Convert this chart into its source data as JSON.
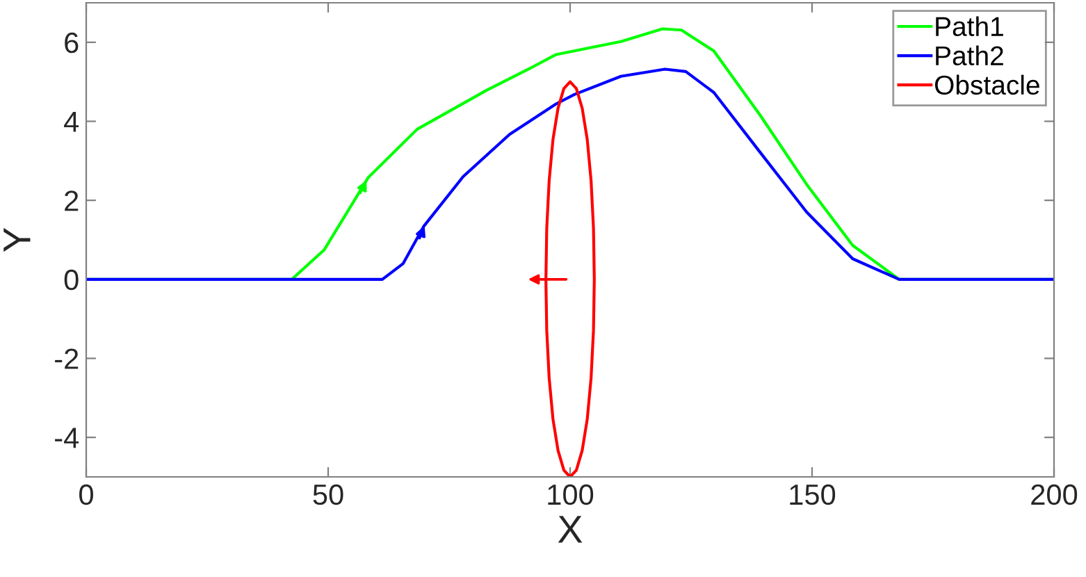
{
  "chart_data": {
    "type": "line",
    "xlabel": "X",
    "ylabel": "Y",
    "xlim": [
      0,
      200
    ],
    "ylim": [
      -5,
      7
    ],
    "xticks": [
      0,
      50,
      100,
      150,
      200
    ],
    "yticks": [
      -4,
      -2,
      0,
      2,
      4,
      6
    ],
    "grid": false,
    "legend": "top right",
    "marker": "none",
    "line_style": "solid",
    "series": [
      {
        "name": "Path1",
        "color": "#00ff00",
        "x": [
          0,
          42.5,
          49.2,
          58.3,
          68.4,
          82.8,
          91.4,
          97.1,
          110.5,
          119.1,
          123,
          129.7,
          139.3,
          148.9,
          158.4,
          168,
          200
        ],
        "values": [
          0,
          0,
          0.75,
          2.58,
          3.8,
          4.79,
          5.32,
          5.69,
          6.02,
          6.34,
          6.31,
          5.78,
          4.15,
          2.4,
          0.86,
          0,
          0
        ]
      },
      {
        "name": "Path2",
        "color": "#0000ff",
        "x": [
          0,
          61.2,
          65.5,
          69.8,
          77.9,
          87.5,
          97.1,
          100.9,
          110.5,
          119.6,
          123.9,
          129.7,
          139.3,
          148.9,
          158.4,
          168,
          200
        ],
        "values": [
          0,
          0,
          0.4,
          1.35,
          2.6,
          3.67,
          4.44,
          4.68,
          5.14,
          5.32,
          5.26,
          4.73,
          3.21,
          1.7,
          0.52,
          0,
          0
        ]
      },
      {
        "name": "Obstacle",
        "color": "#ff0000",
        "x": [
          95,
          95.17,
          95.67,
          96.46,
          97.5,
          98.71,
          100,
          101.29,
          102.5,
          103.54,
          104.33,
          104.83,
          105,
          104.83,
          104.33,
          103.54,
          102.5,
          101.29,
          100,
          98.71,
          97.5,
          96.46,
          95.67,
          95.17,
          95
        ],
        "values": [
          0,
          1.29,
          2.5,
          3.54,
          4.33,
          4.83,
          5,
          4.83,
          4.33,
          3.54,
          2.5,
          1.29,
          0,
          -1.29,
          -2.5,
          -3.54,
          -4.33,
          -4.83,
          -5,
          -4.83,
          -4.33,
          -3.54,
          -2.5,
          -1.29,
          -0.05
        ]
      }
    ]
  }
}
